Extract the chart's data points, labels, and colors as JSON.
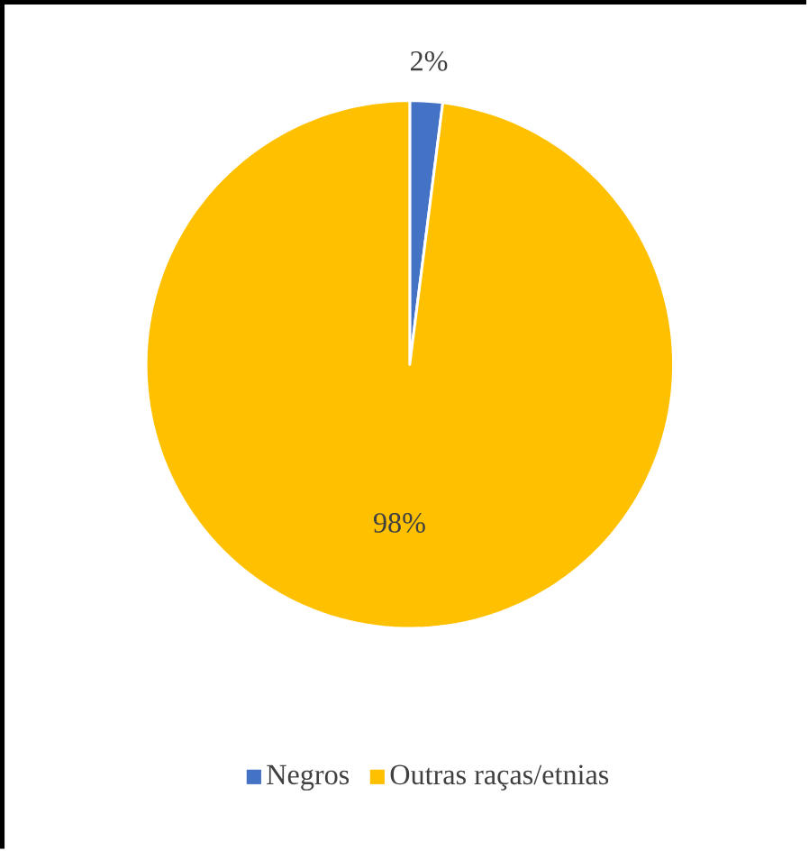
{
  "chart_data": {
    "type": "pie",
    "categories": [
      "Negros",
      "Outras raças/etnias"
    ],
    "values": [
      2,
      98
    ],
    "colors": [
      "#4472c4",
      "#ffc000"
    ],
    "value_labels": [
      "2%",
      "98%"
    ],
    "legend": "bottom"
  }
}
